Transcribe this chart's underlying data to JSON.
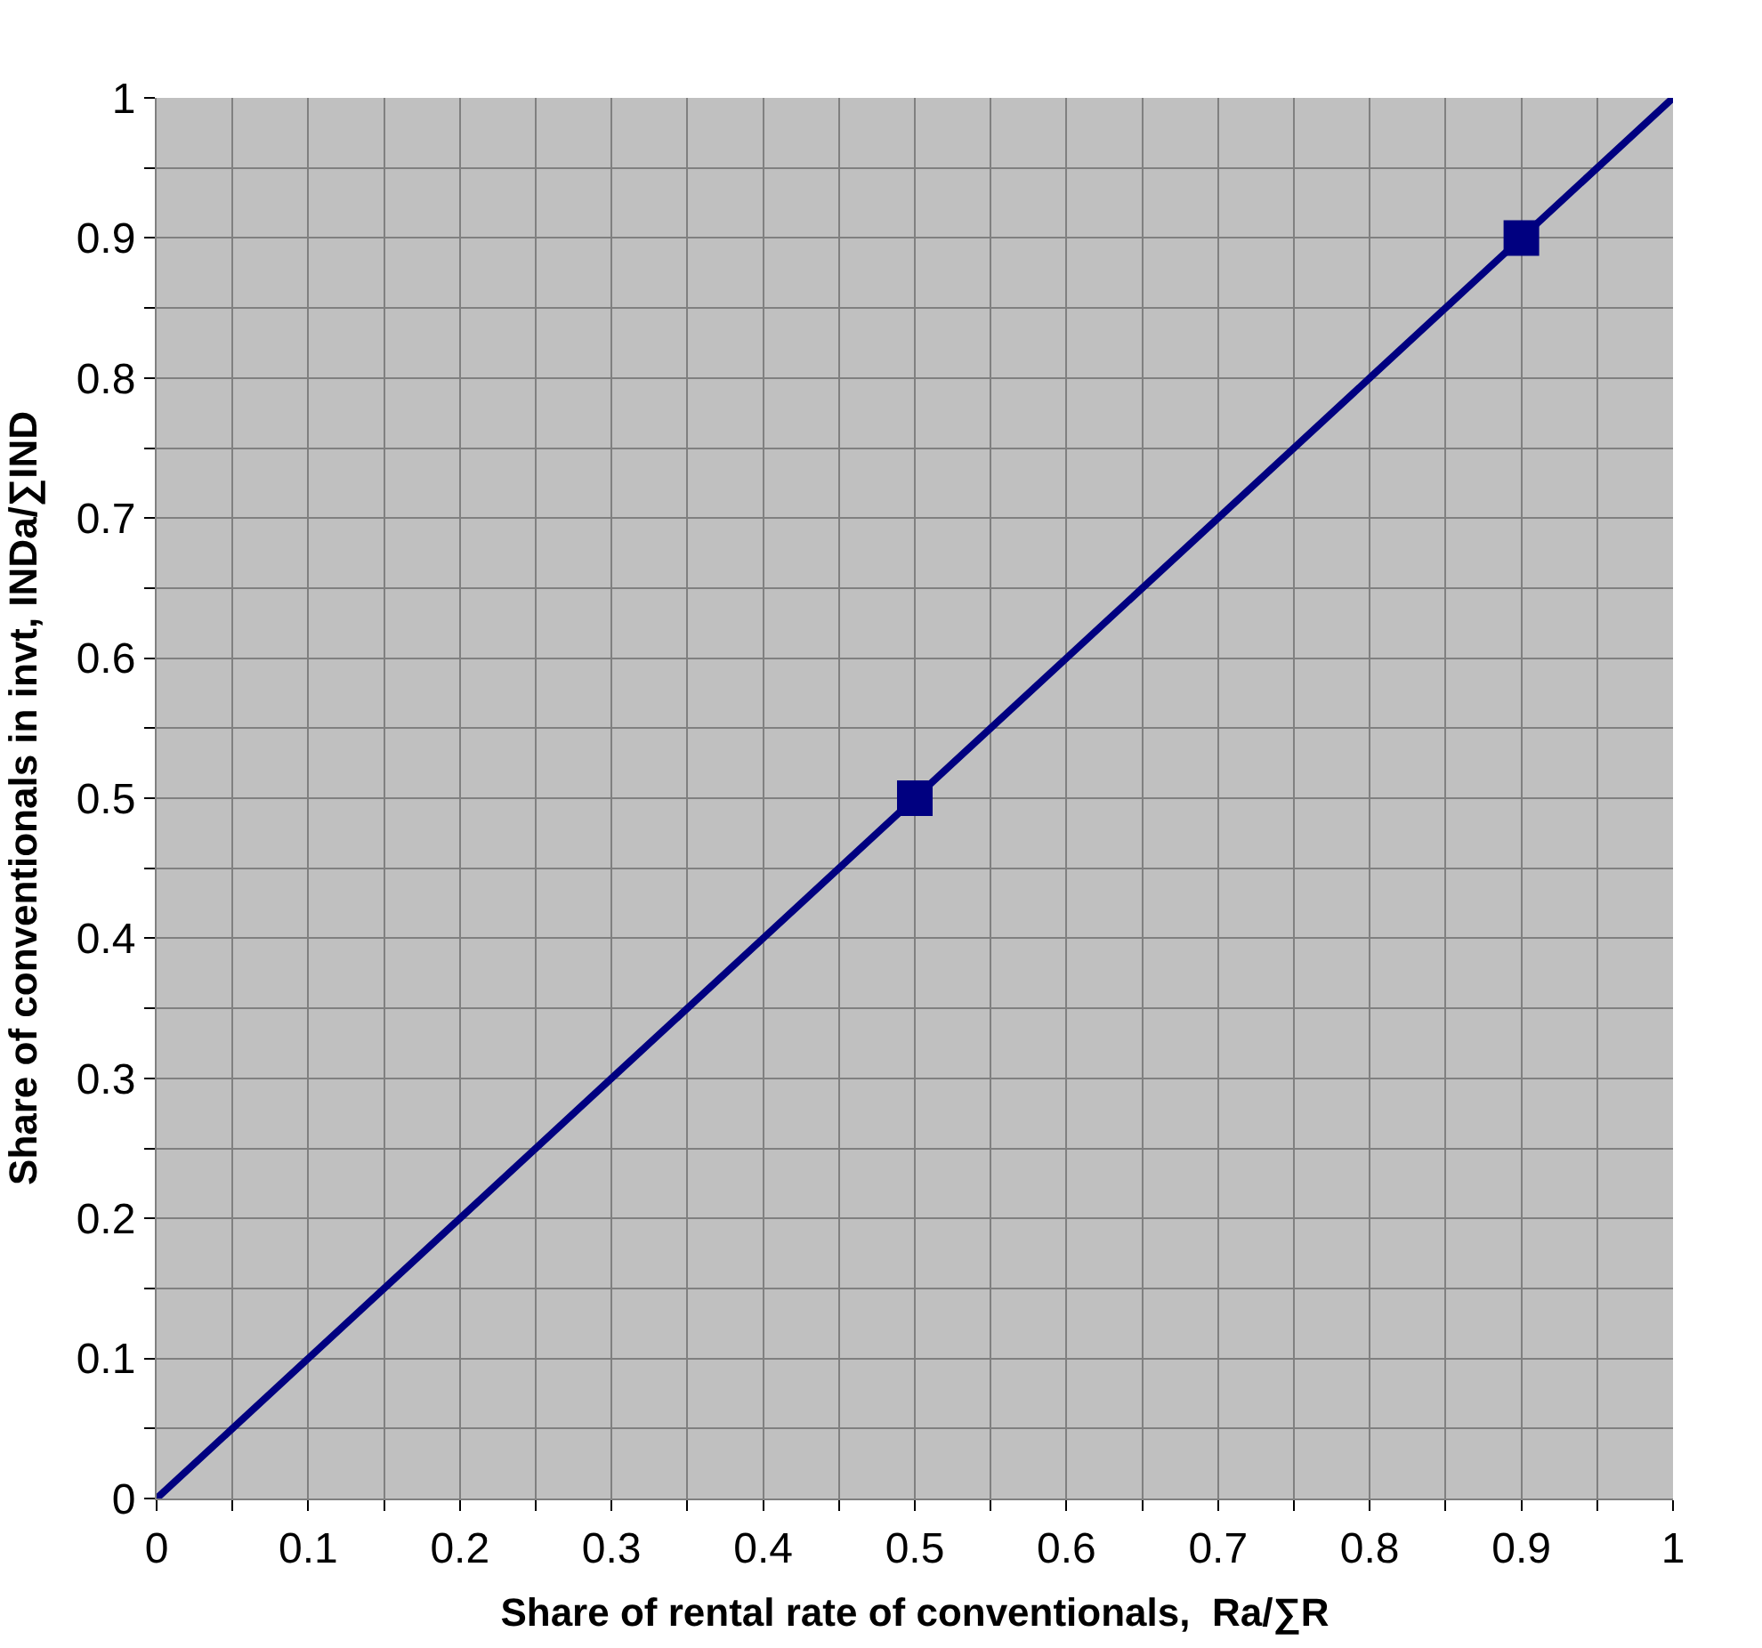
{
  "chart_data": {
    "type": "line",
    "xlabel": "Share of rental rate of conventionals,  Ra/∑R",
    "ylabel": "Share of conventionals in invt, INDa/∑IND",
    "series": [
      {
        "color": "#000080",
        "x": [
          0,
          0.1,
          0.2,
          0.3,
          0.4,
          0.5,
          0.6,
          0.7,
          0.8,
          0.9,
          1
        ],
        "values": [
          0,
          0.1,
          0.2,
          0.3,
          0.4,
          0.5,
          0.6,
          0.7,
          0.8,
          0.9,
          1
        ],
        "marker": "none"
      },
      {
        "type": "scatter",
        "color": "#000080",
        "x": [
          0.5,
          0.9
        ],
        "values": [
          0.5,
          0.9
        ],
        "marker": "square"
      }
    ],
    "xlim": [
      0,
      1
    ],
    "ylim": [
      0,
      1
    ],
    "xticks": [
      0,
      {
        "value": 0.05,
        "label": null
      },
      0.1,
      {
        "value": 0.15,
        "label": null
      },
      0.2,
      {
        "value": 0.25,
        "label": null
      },
      0.3,
      {
        "value": 0.35,
        "label": null
      },
      0.4,
      {
        "value": 0.45,
        "label": null
      },
      0.5,
      {
        "value": 0.55,
        "label": null
      },
      0.6,
      {
        "value": 0.65,
        "label": null
      },
      0.7,
      {
        "value": 0.75,
        "label": null
      },
      0.8,
      {
        "value": 0.85,
        "label": null
      },
      0.9,
      {
        "value": 0.95,
        "label": null
      },
      1
    ],
    "yticks": [
      0,
      {
        "value": 0.05,
        "label": null
      },
      0.1,
      {
        "value": 0.15,
        "label": null
      },
      0.2,
      {
        "value": 0.25,
        "label": null
      },
      0.3,
      {
        "value": 0.35,
        "label": null
      },
      0.4,
      {
        "value": 0.45,
        "label": null
      },
      0.5,
      {
        "value": 0.55,
        "label": null
      },
      0.6,
      {
        "value": 0.65,
        "label": null
      },
      0.7,
      {
        "value": 0.75,
        "label": null
      },
      0.8,
      {
        "value": 0.85,
        "label": null
      },
      0.9,
      {
        "value": 0.95,
        "label": null
      },
      1
    ],
    "grid": true,
    "line_style": "solid"
  }
}
